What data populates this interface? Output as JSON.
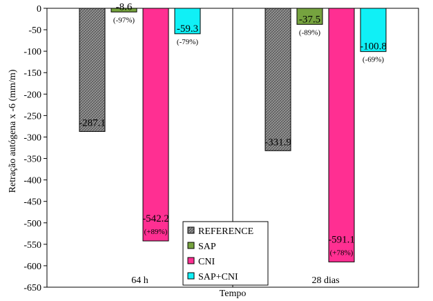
{
  "chart_data": {
    "type": "bar",
    "ylabel": "Retração autógena x -6 (mm/m)",
    "xlabel": "Tempo",
    "ylim": [
      -650,
      0
    ],
    "ytick_step": 50,
    "categories": [
      "64 h",
      "28 dias"
    ],
    "series": [
      {
        "name": "REFERENCE",
        "color": "#8c8c8c",
        "pattern": "crosshatch",
        "values": [
          -287.1,
          -331.9
        ],
        "labels": [
          "-287.1",
          "-331.9"
        ],
        "pct": [
          "",
          ""
        ]
      },
      {
        "name": "SAP",
        "color": "#76a33f",
        "pattern": "solid",
        "values": [
          -8.6,
          -37.5
        ],
        "labels": [
          "-8.6",
          "-37.5"
        ],
        "pct": [
          "(-97%)",
          "(-89%)"
        ]
      },
      {
        "name": "CNI",
        "color": "#ff2f92",
        "pattern": "solid",
        "values": [
          -542.2,
          -591.1
        ],
        "labels": [
          "-542.2",
          "-591.1"
        ],
        "pct": [
          "(+89%)",
          "(+78%)"
        ]
      },
      {
        "name": "SAP+CNI",
        "color": "#10f0f6",
        "pattern": "solid",
        "values": [
          -59.3,
          -100.8
        ],
        "labels": [
          "-59.3",
          "-100.8"
        ],
        "pct": [
          "(-79%)",
          "(-69%)"
        ]
      }
    ],
    "grid": false,
    "legend_position": "bottom-center",
    "category_separator": true
  }
}
